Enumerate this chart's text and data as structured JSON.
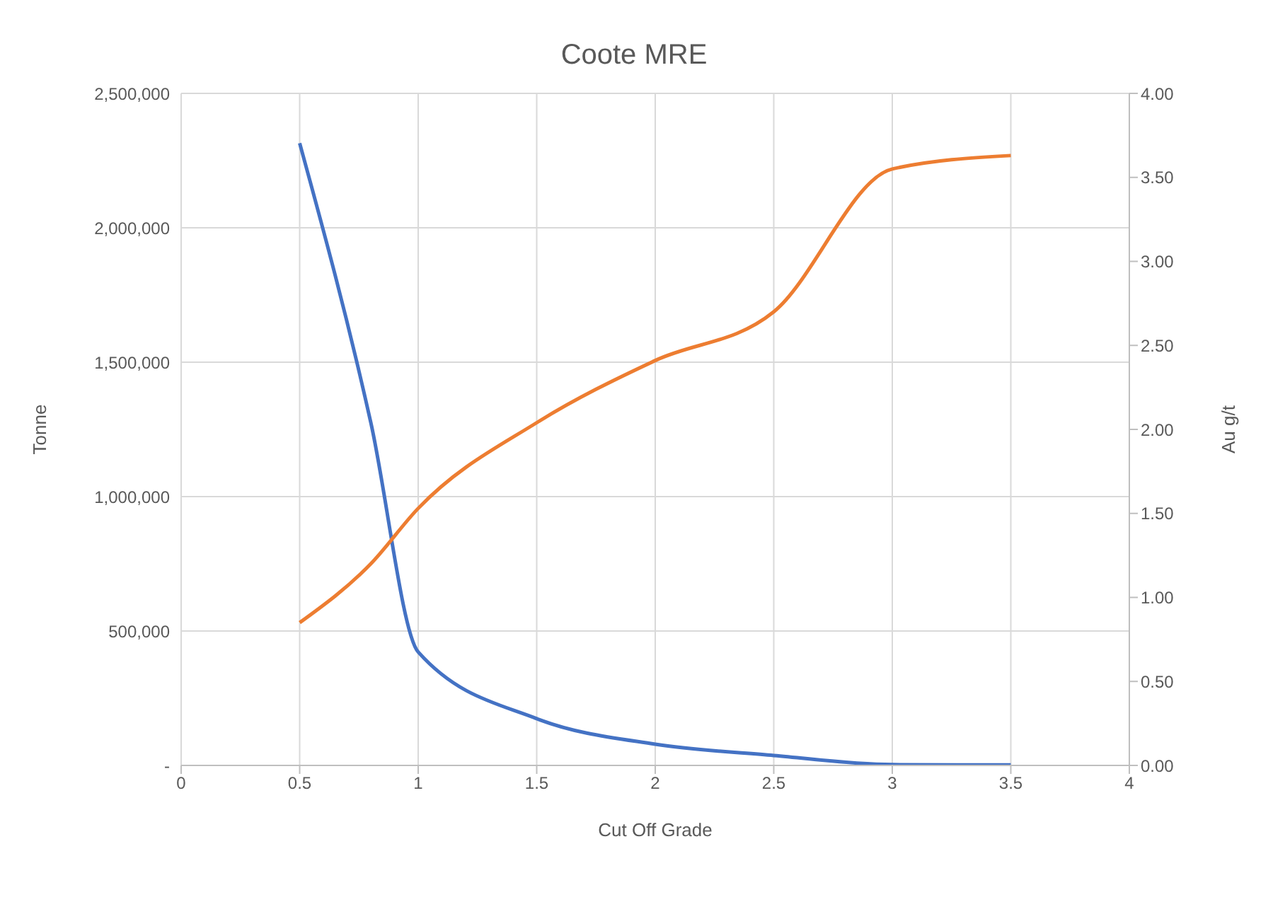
{
  "chart_data": {
    "type": "line",
    "title": "Coote MRE",
    "xlabel": "Cut Off Grade",
    "ylabel": "Tonne",
    "y2label": "Au g/t",
    "x": [
      0.5,
      0.8,
      1,
      1.5,
      2,
      2.5,
      3,
      3.5
    ],
    "series": [
      {
        "color": "#4472c4",
        "values": [
          2315000,
          1276000,
          422000,
          174000,
          79000,
          37000,
          3000,
          2000
        ]
      },
      {
        "color": "#ed7d31",
        "axis": "y2",
        "values": [
          0.85,
          1.2,
          1.53,
          2.04,
          2.41,
          2.7,
          3.55,
          3.63
        ]
      }
    ],
    "xlim": [
      0,
      4
    ],
    "xticks": [
      0,
      0.5,
      1,
      1.5,
      2,
      2.5,
      3,
      3.5,
      4
    ],
    "ylim": [
      0,
      2500000
    ],
    "yticks": [
      {
        "value": 0,
        "label": "-"
      },
      {
        "value": 500000,
        "label": "500,000"
      },
      {
        "value": 1000000,
        "label": "1,000,000"
      },
      {
        "value": 1500000,
        "label": "1,500,000"
      },
      {
        "value": 2000000,
        "label": "2,000,000"
      },
      {
        "value": 2500000,
        "label": "2,500,000"
      }
    ],
    "y2lim": [
      0,
      4
    ],
    "y2ticks": [
      {
        "value": 0,
        "label": "0.00"
      },
      {
        "value": 0.5,
        "label": "0.50"
      },
      {
        "value": 1,
        "label": "1.00"
      },
      {
        "value": 1.5,
        "label": "1.50"
      },
      {
        "value": 2,
        "label": "2.00"
      },
      {
        "value": 2.5,
        "label": "2.50"
      },
      {
        "value": 3,
        "label": "3.00"
      },
      {
        "value": 3.5,
        "label": "3.50"
      },
      {
        "value": 4,
        "label": "4.00"
      }
    ],
    "grid": true,
    "legend": false,
    "marker": "none",
    "line_style": "solid"
  }
}
